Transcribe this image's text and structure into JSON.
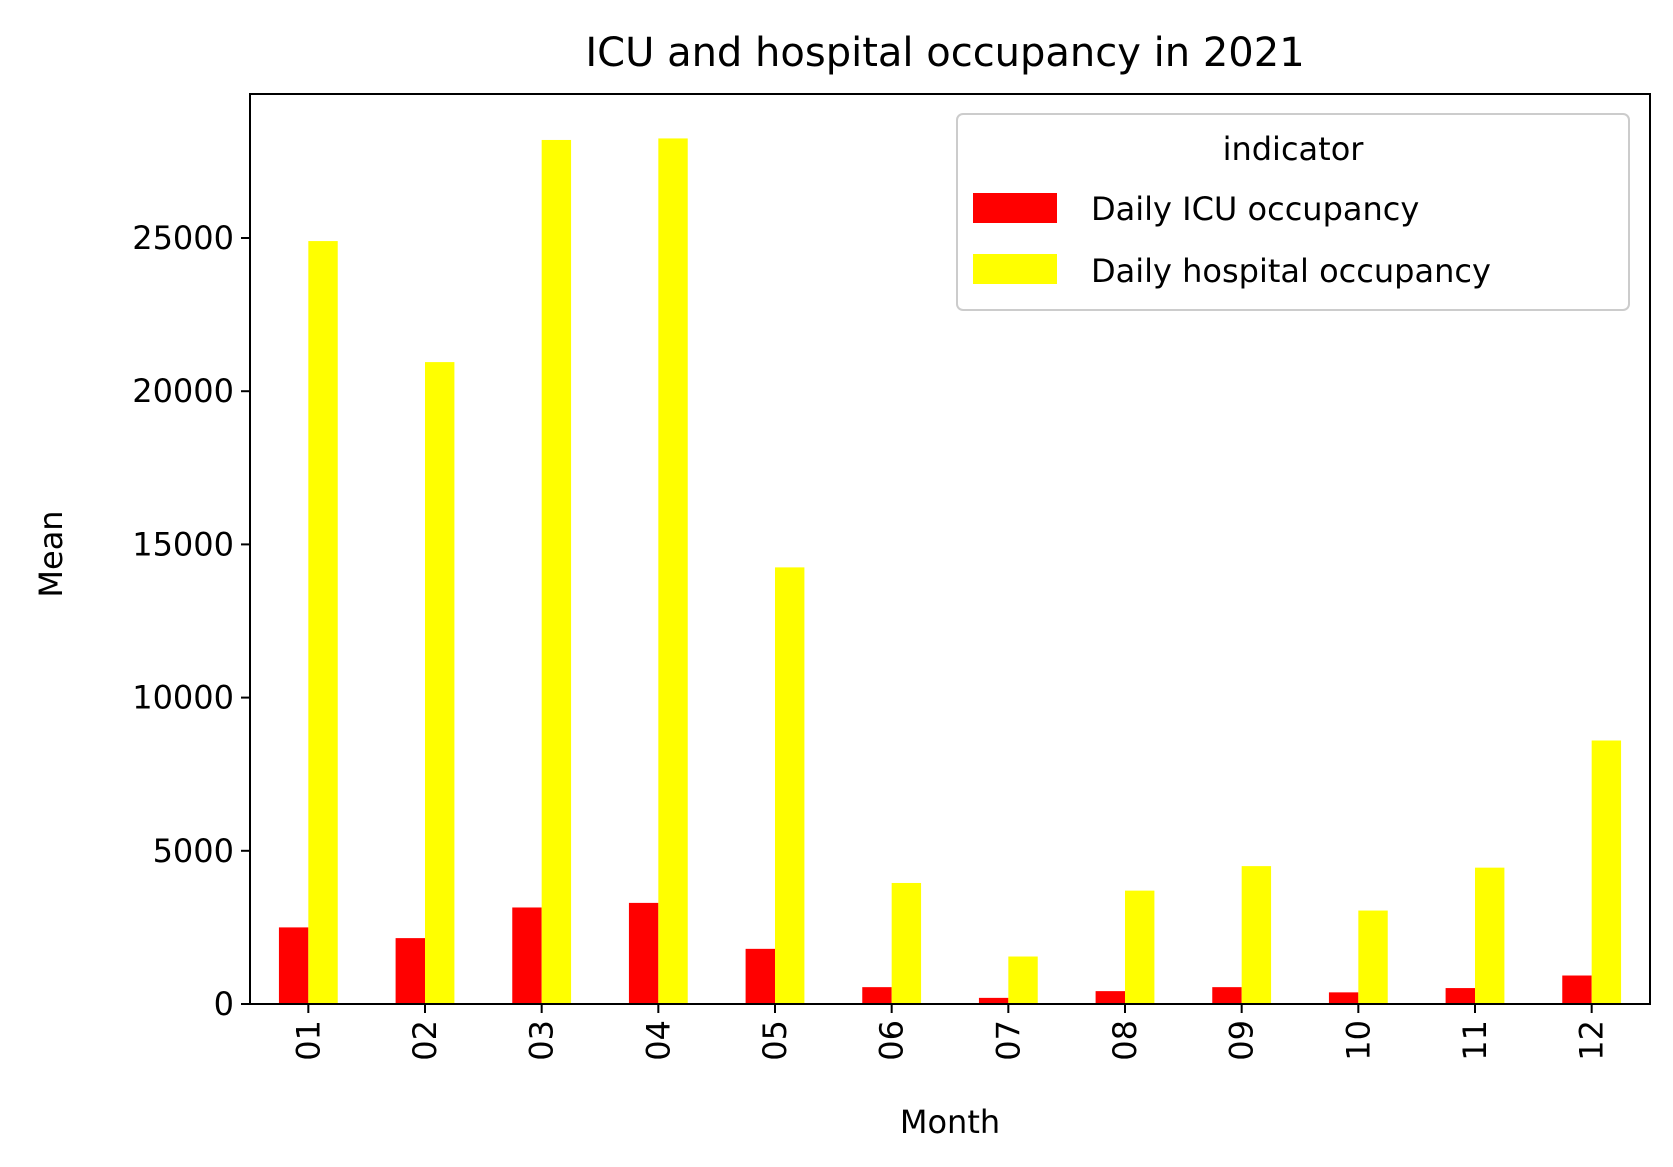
{
  "chart_data": {
    "type": "bar",
    "title": "ICU and hospital occupancy in 2021",
    "xlabel": "Month",
    "ylabel": "Mean",
    "categories": [
      "01",
      "02",
      "03",
      "04",
      "05",
      "06",
      "07",
      "08",
      "09",
      "10",
      "11",
      "12"
    ],
    "ylim": [
      0,
      29700
    ],
    "yticks": [
      0,
      5000,
      10000,
      15000,
      20000,
      25000
    ],
    "grid": false,
    "legend": {
      "title": "indicator",
      "placement": "top-right"
    },
    "series": [
      {
        "name": "Daily ICU occupancy",
        "color": "#ff0000",
        "values": [
          2500,
          2150,
          3150,
          3300,
          1800,
          550,
          200,
          420,
          550,
          380,
          520,
          930
        ]
      },
      {
        "name": "Daily hospital occupancy",
        "color": "#ffff00",
        "values": [
          24900,
          20950,
          28200,
          28250,
          14250,
          3950,
          1550,
          3700,
          4500,
          3050,
          4450,
          8600
        ]
      }
    ]
  }
}
